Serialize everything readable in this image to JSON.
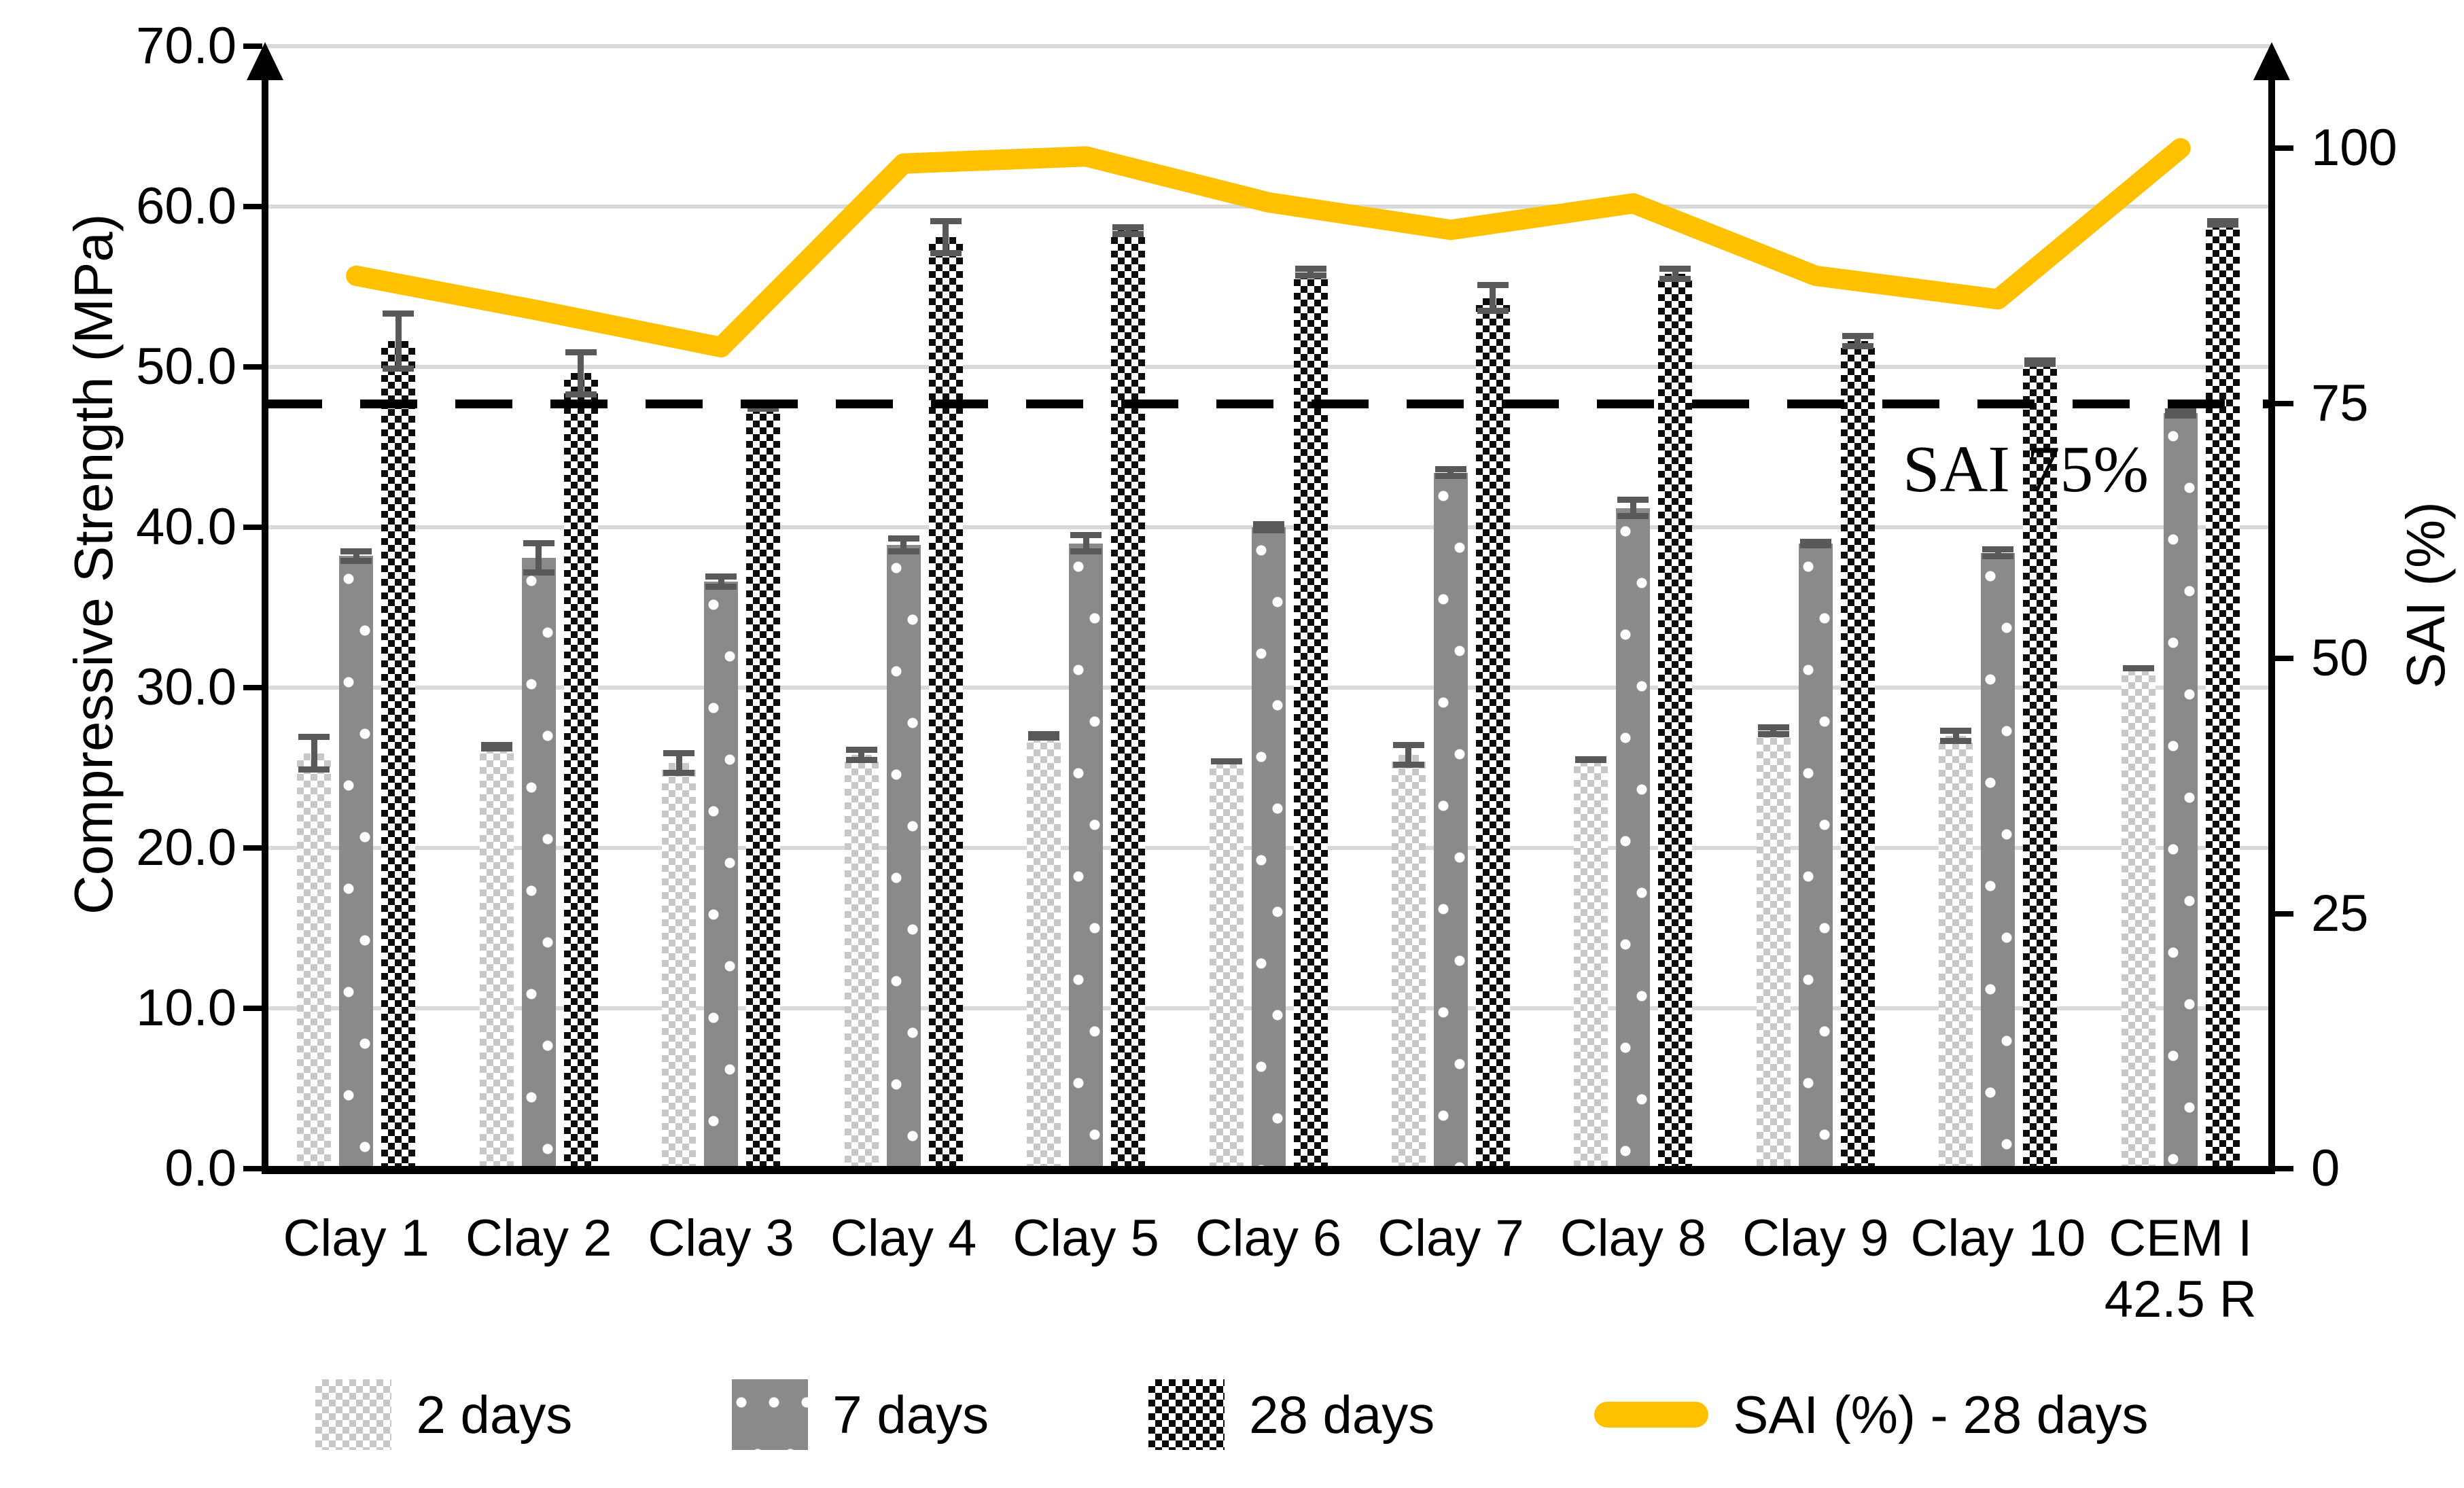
{
  "chart_data": {
    "type": "combo_bar_line",
    "categories": [
      "Clay 1",
      "Clay 2",
      "Clay 3",
      "Clay 4",
      "Clay 5",
      "Clay 6",
      "Clay 7",
      "Clay 8",
      "Clay 9",
      "Clay 10",
      "CEM I\n42.5 R"
    ],
    "bar_series": [
      {
        "name": "2 days",
        "pattern": "checker-light",
        "values": [
          25.9,
          26.3,
          25.3,
          25.8,
          27.0,
          25.4,
          25.8,
          25.5,
          27.3,
          27.0,
          31.2
        ],
        "errors": [
          1.2,
          0.3,
          0.8,
          0.5,
          0.3,
          0.2,
          0.8,
          0.2,
          0.4,
          0.5,
          0.2
        ]
      },
      {
        "name": "7 days",
        "pattern": "gray-white-dots",
        "values": [
          38.2,
          38.1,
          36.6,
          38.9,
          39.0,
          40.0,
          43.4,
          41.2,
          39.0,
          38.4,
          47.1
        ],
        "errors": [
          0.5,
          1.1,
          0.5,
          0.6,
          0.7,
          0.4,
          0.4,
          0.7,
          0.3,
          0.4,
          0.3
        ]
      },
      {
        "name": "28 days",
        "pattern": "checker-dark",
        "values": [
          51.6,
          49.6,
          47.5,
          58.1,
          58.5,
          55.9,
          54.3,
          55.8,
          51.6,
          50.3,
          59.0
        ],
        "errors": [
          1.9,
          1.5,
          0.3,
          1.2,
          0.4,
          0.4,
          1.0,
          0.5,
          0.5,
          0.3,
          0.3
        ]
      }
    ],
    "line_series": {
      "name": "SAI (%) - 28 days",
      "axis": "right",
      "values": [
        87.5,
        84.1,
        80.5,
        98.5,
        99.2,
        94.7,
        92.0,
        94.6,
        87.5,
        85.2,
        100.0
      ]
    },
    "left_axis": {
      "title": "Compressive Strength (MPa)",
      "min": 0,
      "max": 70,
      "step": 10,
      "tick_labels": [
        "0.0",
        "10.0",
        "20.0",
        "30.0",
        "40.0",
        "50.0",
        "60.0",
        "70.0"
      ]
    },
    "right_axis": {
      "title": "SAI (%)",
      "ticks": [
        0,
        25,
        50,
        75,
        100
      ],
      "display_max": 110
    },
    "reference_line": {
      "axis": "right",
      "value": 75,
      "label": "SAI 75%"
    },
    "gridlines": true,
    "legend_position": "bottom"
  },
  "colors": {
    "line": "#FFC000",
    "bar_gray": "#8a8a8a",
    "bar_light_checker": "#c8c8c8",
    "bar_dark_checker": "#0d0d0d",
    "error_bar": "#595959",
    "gridline": "#d9d9d9",
    "axis": "#000000"
  }
}
